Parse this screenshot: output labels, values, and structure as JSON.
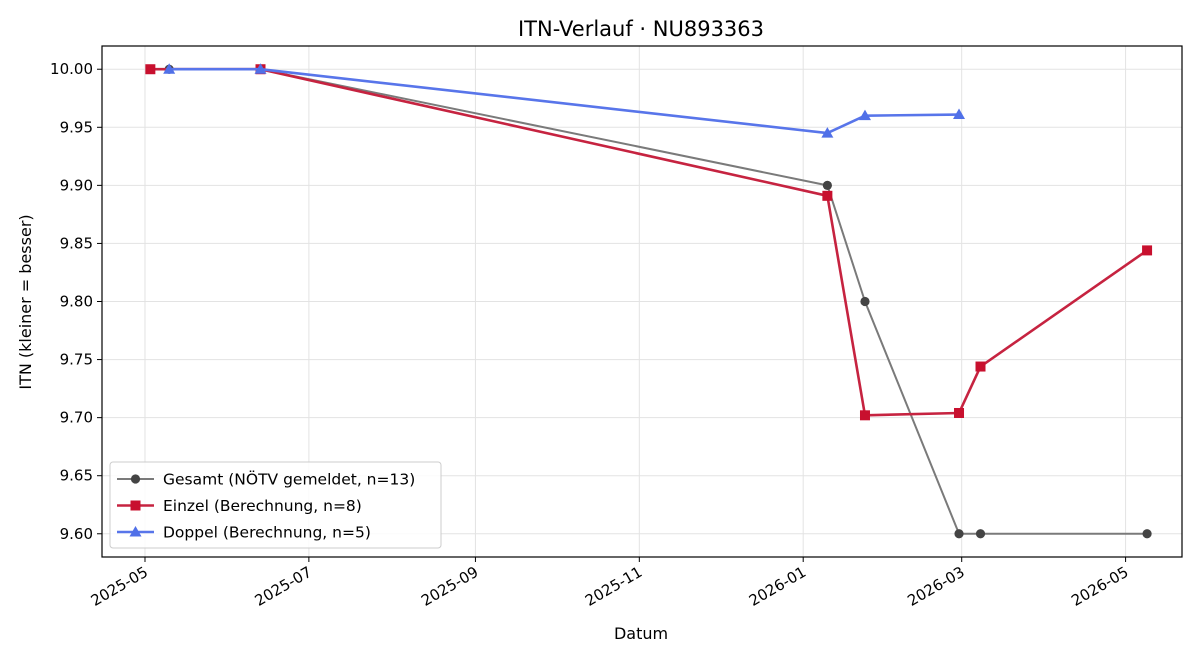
{
  "chart_data": {
    "type": "line",
    "title": "ITN-Verlauf · NU893363",
    "xlabel": "Datum",
    "ylabel": "ITN  (kleiner = besser)",
    "xlim": [
      "2025-04-15",
      "2026-05-22"
    ],
    "ylim": [
      9.58,
      10.02
    ],
    "x_ticks": [
      "2025-05-01",
      "2025-07-01",
      "2025-09-01",
      "2025-11-01",
      "2026-01-01",
      "2026-03-01",
      "2026-05-01"
    ],
    "x_tick_labels": [
      "2025-05",
      "2025-07",
      "2025-09",
      "2025-11",
      "2026-01",
      "2026-03",
      "2026-05"
    ],
    "y_ticks": [
      9.6,
      9.65,
      9.7,
      9.75,
      9.8,
      9.85,
      9.9,
      9.95,
      10.0
    ],
    "y_tick_labels": [
      "9.60",
      "9.65",
      "9.70",
      "9.75",
      "9.80",
      "9.85",
      "9.90",
      "9.95",
      "10.00"
    ],
    "grid": true,
    "legend_position": "lower-left",
    "series": [
      {
        "name": "Gesamt (NÖTV gemeldet, n=13)",
        "color": "#7a7a7a",
        "marker_color": "#444444",
        "marker": "circle",
        "points": [
          {
            "x": "2025-05-03",
            "y": 10.0
          },
          {
            "x": "2025-05-10",
            "y": 10.0
          },
          {
            "x": "2025-06-13",
            "y": 10.0
          },
          {
            "x": "2026-01-10",
            "y": 9.9
          },
          {
            "x": "2026-01-24",
            "y": 9.8
          },
          {
            "x": "2026-02-28",
            "y": 9.6
          },
          {
            "x": "2026-03-08",
            "y": 9.6
          },
          {
            "x": "2026-05-09",
            "y": 9.6
          }
        ]
      },
      {
        "name": "Einzel (Berechnung, n=8)",
        "color": "#c62340",
        "marker_color": "#c8102e",
        "marker": "square",
        "points": [
          {
            "x": "2025-05-03",
            "y": 10.0
          },
          {
            "x": "2025-06-13",
            "y": 10.0
          },
          {
            "x": "2026-01-10",
            "y": 9.891
          },
          {
            "x": "2026-01-24",
            "y": 9.702
          },
          {
            "x": "2026-02-28",
            "y": 9.704
          },
          {
            "x": "2026-03-08",
            "y": 9.744
          },
          {
            "x": "2026-05-09",
            "y": 9.844
          }
        ]
      },
      {
        "name": "Doppel (Berechnung, n=5)",
        "color": "#5875ea",
        "marker_color": "#5070e8",
        "marker": "triangle",
        "points": [
          {
            "x": "2025-05-10",
            "y": 10.0
          },
          {
            "x": "2025-06-13",
            "y": 10.0
          },
          {
            "x": "2026-01-10",
            "y": 9.945
          },
          {
            "x": "2026-01-24",
            "y": 9.96
          },
          {
            "x": "2026-02-28",
            "y": 9.961
          }
        ]
      }
    ]
  }
}
